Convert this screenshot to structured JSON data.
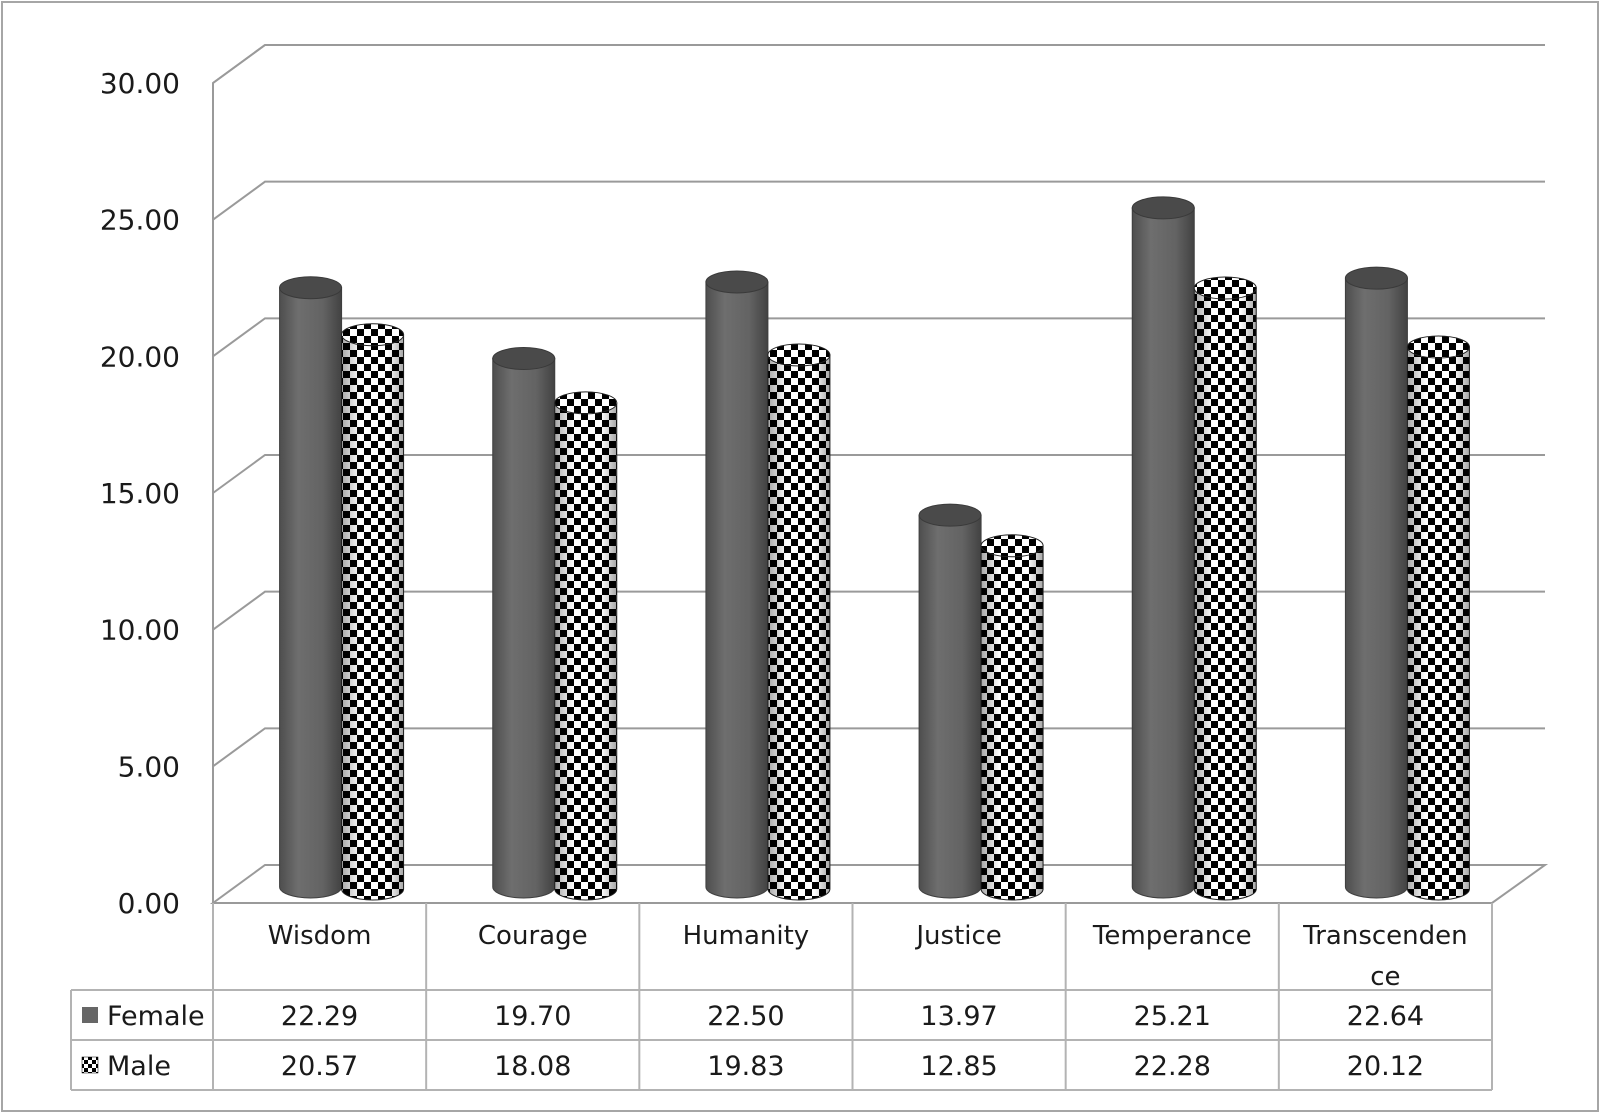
{
  "chart_data": {
    "type": "bar",
    "style": "3d-cylinder",
    "categories": [
      "Wisdom",
      "Courage",
      "Humanity",
      "Justice",
      "Temperance",
      "Transcendence"
    ],
    "category_display": [
      [
        "Wisdom"
      ],
      [
        "Courage"
      ],
      [
        "Humanity"
      ],
      [
        "Justice"
      ],
      [
        "Temperance"
      ],
      [
        "Transcenden",
        "ce"
      ]
    ],
    "series": [
      {
        "name": "Female",
        "values": [
          22.29,
          19.7,
          22.5,
          13.97,
          25.21,
          22.64
        ],
        "labels": [
          "22.29",
          "19.70",
          "22.50",
          "13.97",
          "25.21",
          "22.64"
        ],
        "color": "#666666",
        "pattern": "solid"
      },
      {
        "name": "Male",
        "values": [
          20.57,
          18.08,
          19.83,
          12.85,
          22.28,
          20.12
        ],
        "labels": [
          "20.57",
          "18.08",
          "19.83",
          "12.85",
          "22.28",
          "20.12"
        ],
        "color": "#000000",
        "pattern": "checkerboard"
      }
    ],
    "y_ticks": [
      "0.00",
      "5.00",
      "10.00",
      "15.00",
      "20.00",
      "25.00",
      "30.00"
    ],
    "ylim": [
      0,
      30
    ],
    "grid": true,
    "legend": "data-table"
  }
}
